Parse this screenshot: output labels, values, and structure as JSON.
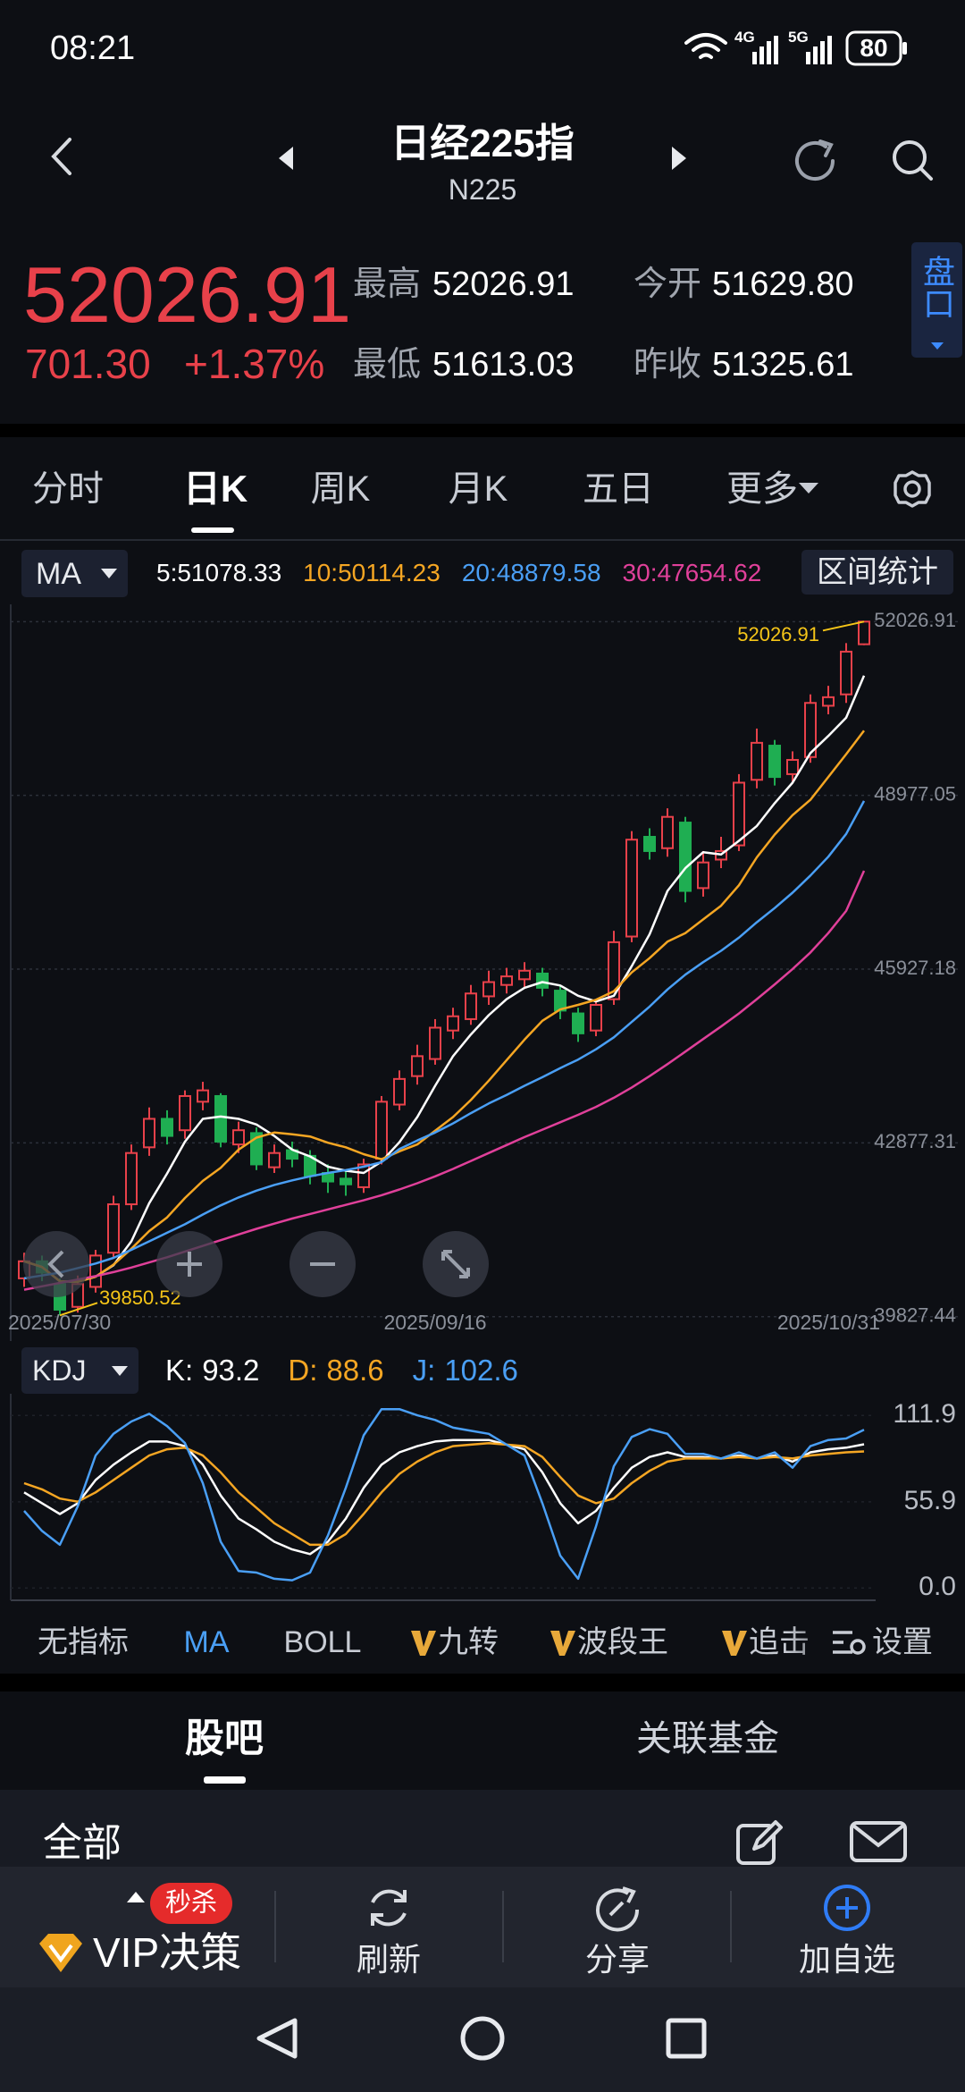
{
  "status_bar": {
    "time": "08:21",
    "net1": "4G",
    "net2": "5G",
    "battery": "80"
  },
  "header": {
    "title": "日经225指",
    "code": "N225"
  },
  "quote": {
    "price": "52026.91",
    "change": "701.30",
    "change_pct": "+1.37%",
    "high_label": "最高",
    "high": "52026.91",
    "open_label": "今开",
    "open": "51629.80",
    "low_label": "最低",
    "low": "51613.03",
    "prev_close_label": "昨收",
    "prev_close": "51325.61",
    "depth_button": "盘口"
  },
  "period_tabs": [
    "分时",
    "日K",
    "周K",
    "月K",
    "五日",
    "更多"
  ],
  "range_button": "区间统计",
  "chart_data": [
    {
      "type": "candlestick",
      "indicator": "MA",
      "categories": [
        "2025/07/30",
        null,
        null,
        null,
        null,
        null,
        null,
        null,
        null,
        null,
        null,
        null,
        null,
        null,
        null,
        null,
        null,
        null,
        null,
        null,
        null,
        null,
        null,
        "2025/09/16",
        null,
        null,
        null,
        null,
        null,
        null,
        null,
        null,
        null,
        null,
        null,
        null,
        null,
        null,
        null,
        null,
        null,
        null,
        null,
        null,
        null,
        null,
        null,
        "2025/10/31"
      ],
      "open": [
        40500,
        40800,
        40400,
        40000,
        40350,
        40950,
        41800,
        42800,
        43300,
        43100,
        43600,
        43700,
        42850,
        43050,
        42450,
        42750,
        42650,
        42350,
        42250,
        42100,
        42600,
        43550,
        44050,
        44350,
        44850,
        45050,
        45450,
        45650,
        45750,
        45850,
        45550,
        45150,
        44850,
        45400,
        46500,
        48250,
        48050,
        48500,
        47350,
        47850,
        48100,
        49250,
        49850,
        49350,
        49650,
        50550,
        50750,
        51629.8
      ],
      "high": [
        40950,
        40900,
        40500,
        40550,
        41000,
        41950,
        42850,
        43500,
        43450,
        43800,
        43950,
        43750,
        43250,
        43150,
        42850,
        42900,
        42750,
        42500,
        42400,
        42600,
        43700,
        44150,
        44600,
        45050,
        45250,
        45650,
        45900,
        45950,
        46050,
        45950,
        45650,
        45250,
        45400,
        46600,
        48350,
        48400,
        48750,
        48600,
        48000,
        48250,
        49350,
        50150,
        49950,
        49750,
        50750,
        50900,
        51650,
        52026.91
      ],
      "low": [
        40350,
        40450,
        39850.52,
        39900,
        40250,
        40850,
        41700,
        42650,
        42850,
        42950,
        43450,
        42800,
        42700,
        42400,
        42350,
        42450,
        42150,
        42000,
        41950,
        42000,
        42500,
        43450,
        43900,
        44250,
        44700,
        44950,
        45300,
        45500,
        45600,
        45450,
        45050,
        44650,
        44750,
        45300,
        46400,
        47850,
        47900,
        47100,
        47200,
        47700,
        48000,
        49100,
        49150,
        49200,
        49550,
        50400,
        50600,
        51613.03
      ],
      "close": [
        40800,
        40600,
        39950,
        40400,
        40900,
        41800,
        42700,
        43300,
        43000,
        43700,
        43800,
        42900,
        43100,
        42500,
        42700,
        42600,
        42300,
        42200,
        42150,
        42500,
        43600,
        44000,
        44400,
        44900,
        45100,
        45500,
        45700,
        45800,
        45900,
        45600,
        45200,
        44800,
        45300,
        46400,
        48200,
        48000,
        48600,
        47300,
        47800,
        48000,
        49200,
        49900,
        49300,
        49600,
        50600,
        50700,
        51500,
        52026.91
      ],
      "up_color": "#e8414a",
      "down_color": "#1fae52",
      "extreme_color": "#f5c518",
      "series": [
        {
          "name": "5:",
          "color": "#ffffff",
          "values": [
            40800,
            40700,
            40450,
            40440,
            40530,
            40730,
            41150,
            41820,
            42340,
            42900,
            43300,
            43340,
            43300,
            43200,
            43000,
            42760,
            42640,
            42460,
            42390,
            42350,
            42550,
            42890,
            43330,
            43880,
            44400,
            44780,
            45120,
            45400,
            45600,
            45700,
            45640,
            45460,
            45360,
            45460,
            45980,
            46540,
            47300,
            47700,
            47980,
            47940,
            48180,
            48440,
            48840,
            49200,
            49720,
            50020,
            50340,
            51078.33
          ]
        },
        {
          "name": "10:",
          "color": "#f5a623",
          "values": [
            40800,
            40700,
            40450,
            40440,
            40530,
            40740,
            41020,
            41330,
            41570,
            41910,
            42210,
            42440,
            42760,
            42970,
            43060,
            43030,
            42990,
            42880,
            42800,
            42680,
            42590,
            42730,
            42850,
            43090,
            43330,
            43630,
            43970,
            44330,
            44690,
            45020,
            45220,
            45300,
            45390,
            45540,
            45870,
            46120,
            46410,
            46560,
            46800,
            47040,
            47400,
            47890,
            48290,
            48630,
            48900,
            49300,
            49700,
            50114.23
          ]
        },
        {
          "name": "20:",
          "color": "#4a9ff5",
          "values": [
            40500,
            40550,
            40600,
            40680,
            40760,
            40860,
            41000,
            41150,
            41300,
            41450,
            41620,
            41780,
            41920,
            42040,
            42140,
            42220,
            42290,
            42350,
            42400,
            42460,
            42540,
            42770,
            42920,
            43060,
            43220,
            43400,
            43570,
            43720,
            43880,
            44030,
            44190,
            44340,
            44520,
            44730,
            45000,
            45270,
            45570,
            45830,
            46050,
            46250,
            46480,
            46750,
            47000,
            47270,
            47570,
            47900,
            48300,
            48879.58
          ]
        },
        {
          "name": "30:",
          "color": "#e0409a",
          "values": [
            40300,
            40360,
            40420,
            40480,
            40540,
            40610,
            40690,
            40780,
            40870,
            40970,
            41070,
            41170,
            41270,
            41370,
            41460,
            41550,
            41630,
            41710,
            41790,
            41870,
            41960,
            42060,
            42170,
            42290,
            42420,
            42560,
            42700,
            42840,
            42980,
            43110,
            43240,
            43370,
            43510,
            43670,
            43850,
            44050,
            44260,
            44480,
            44700,
            44920,
            45150,
            45400,
            45660,
            45930,
            46220,
            46560,
            46950,
            47654.62
          ]
        }
      ],
      "ylim": [
        39400,
        52330
      ],
      "yticks": [
        52026.91,
        48977.05,
        45927.18,
        42877.31,
        39827.44
      ],
      "grid": true
    },
    {
      "type": "line",
      "indicator": "KDJ",
      "series": [
        {
          "name": "K:",
          "color": "#ffffff",
          "values": [
            62,
            55,
            48,
            55,
            70,
            80,
            88,
            95,
            95,
            92,
            80,
            60,
            45,
            38,
            30,
            25,
            22,
            30,
            45,
            65,
            80,
            88,
            92,
            95,
            96,
            96,
            96,
            93,
            90,
            75,
            55,
            42,
            50,
            65,
            78,
            85,
            88,
            85,
            85,
            84,
            86,
            84,
            86,
            82,
            88,
            90,
            91,
            93.2
          ]
        },
        {
          "name": "D:",
          "color": "#f5a623",
          "values": [
            68,
            64,
            58,
            56,
            62,
            70,
            78,
            86,
            90,
            91,
            86,
            75,
            62,
            52,
            42,
            35,
            28,
            28,
            35,
            48,
            62,
            74,
            82,
            88,
            92,
            93,
            94,
            93,
            92,
            85,
            72,
            60,
            55,
            58,
            68,
            76,
            82,
            84,
            84,
            84,
            85,
            84,
            85,
            84,
            86,
            87,
            88,
            88.6
          ]
        },
        {
          "name": "J:",
          "color": "#4a9ff5",
          "values": [
            50,
            37,
            28,
            53,
            86,
            100,
            108,
            113,
            105,
            94,
            68,
            30,
            11,
            10,
            6,
            5,
            10,
            34,
            65,
            99,
            116,
            116,
            112,
            109,
            104,
            102,
            100,
            93,
            86,
            55,
            21,
            6,
            40,
            79,
            98,
            103,
            100,
            87,
            87,
            84,
            88,
            84,
            88,
            78,
            92,
            96,
            97,
            102.6
          ]
        }
      ],
      "ylim": [
        -8,
        126
      ],
      "yticks": [
        {
          "value": 0,
          "label": "0.0"
        },
        55.9,
        111.9
      ],
      "grid": true
    }
  ],
  "indicator_tabs": [
    "无指标",
    "MA",
    "BOLL",
    "九转",
    "波段王",
    "追击"
  ],
  "settings": "设置",
  "community_tabs": [
    "股吧",
    "关联基金"
  ],
  "filter": "全部",
  "bottom_bar": {
    "badge": "秒杀",
    "vip": "VIP决策",
    "refresh": "刷新",
    "share": "分享",
    "watchlist": "加自选"
  }
}
